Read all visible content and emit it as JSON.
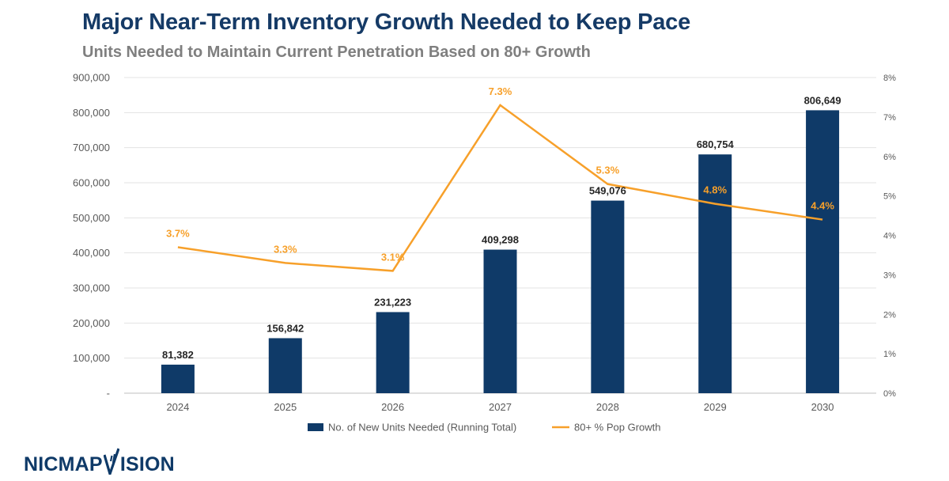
{
  "title": "Major Near-Term Inventory Growth Needed to Keep Pace",
  "subtitle": "Units Needed to Maintain Current Penetration Based on 80+ Growth",
  "logo": {
    "part1": "NICMAP",
    "part2": "ISION"
  },
  "colors": {
    "bar": "#0f3a68",
    "line": "#f7a02a",
    "title": "#153a66",
    "grid": "#e3e3e3",
    "axis_text": "#595959"
  },
  "chart_data": {
    "type": "bar+line",
    "categories": [
      "2024",
      "2025",
      "2026",
      "2027",
      "2028",
      "2029",
      "2030"
    ],
    "series": [
      {
        "name": "No. of New Units Needed (Running Total)",
        "type": "bar",
        "axis": "left",
        "values": [
          81382,
          156842,
          231223,
          409298,
          549076,
          680754,
          806649
        ],
        "labels": [
          "81,382",
          "156,842",
          "231,223",
          "409,298",
          "549,076",
          "680,754",
          "806,649"
        ]
      },
      {
        "name": "80+ % Pop Growth",
        "type": "line",
        "axis": "right",
        "values": [
          3.7,
          3.3,
          3.1,
          7.3,
          5.3,
          4.8,
          4.4
        ],
        "labels": [
          "3.7%",
          "3.3%",
          "3.1%",
          "7.3%",
          "5.3%",
          "4.8%",
          "4.4%"
        ]
      }
    ],
    "y_left": {
      "min": 0,
      "max": 900000,
      "ticks": [
        0,
        100000,
        200000,
        300000,
        400000,
        500000,
        600000,
        700000,
        800000,
        900000
      ],
      "tick_labels": [
        "-",
        "100,000",
        "200,000",
        "300,000",
        "400,000",
        "500,000",
        "600,000",
        "700,000",
        "800,000",
        "900,000"
      ]
    },
    "y_right": {
      "min": 0,
      "max": 8,
      "ticks": [
        0,
        1,
        2,
        3,
        4,
        5,
        6,
        7,
        8
      ],
      "tick_labels": [
        "0%",
        "1%",
        "2%",
        "3%",
        "4%",
        "5%",
        "6%",
        "7%",
        "8%"
      ]
    },
    "legend": [
      "No. of New Units Needed (Running Total)",
      "80+ % Pop Growth"
    ],
    "legend_position": "bottom",
    "grid": true
  }
}
